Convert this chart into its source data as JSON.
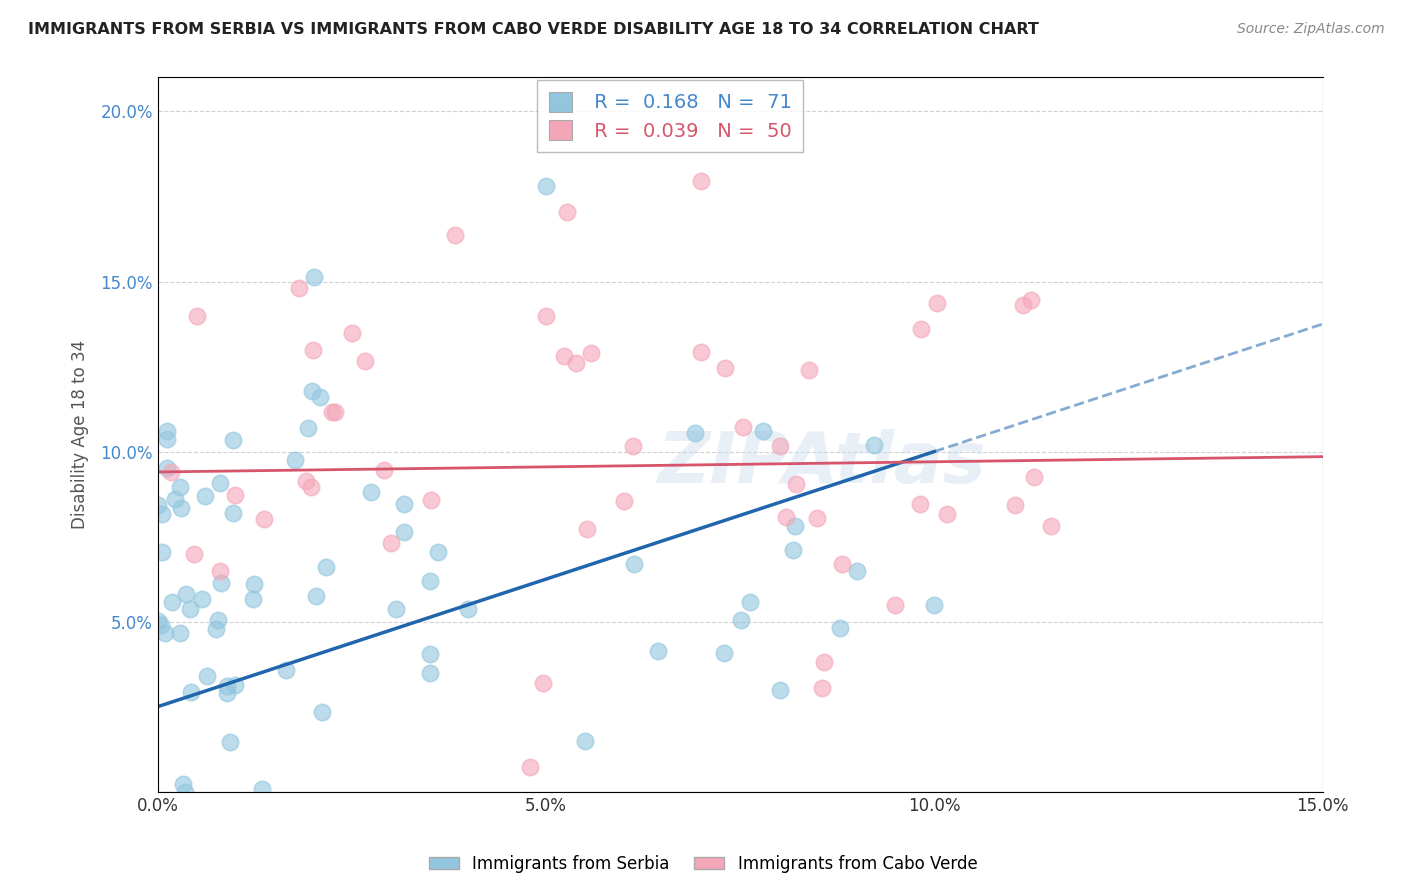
{
  "title": "IMMIGRANTS FROM SERBIA VS IMMIGRANTS FROM CABO VERDE DISABILITY AGE 18 TO 34 CORRELATION CHART",
  "source": "Source: ZipAtlas.com",
  "ylabel": "Disability Age 18 to 34",
  "xlim": [
    0.0,
    0.15
  ],
  "ylim": [
    0.0,
    0.21
  ],
  "serbia_R": 0.168,
  "serbia_N": 71,
  "caboverde_R": 0.039,
  "caboverde_N": 50,
  "serbia_color": "#92c5de",
  "caboverde_color": "#f4a6b8",
  "serbia_line_color": "#2166ac",
  "caboverde_line_color": "#d6556a",
  "watermark": "ZIPAtlas",
  "background_color": "#ffffff",
  "grid_color": "#cccccc",
  "ytick_color": "#4488cc",
  "xtick_color": "#333333"
}
